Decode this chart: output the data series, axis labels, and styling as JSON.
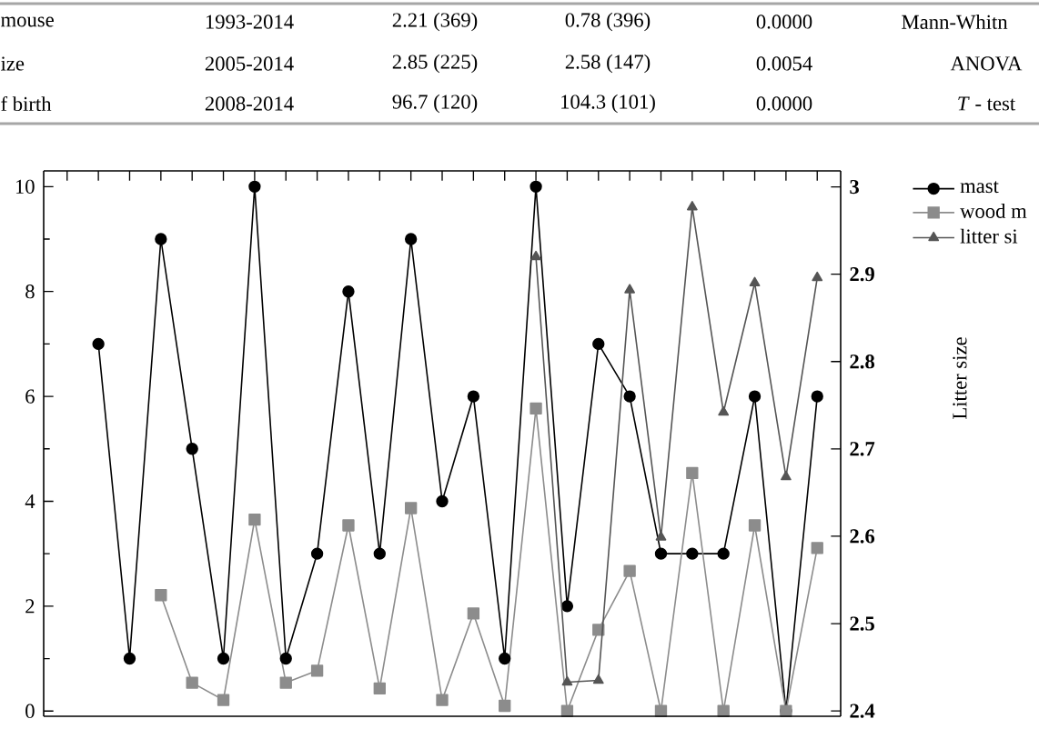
{
  "chart_data": {
    "type": "line",
    "categories": [
      null,
      null,
      null,
      null,
      null,
      null,
      null,
      null,
      null,
      null,
      null,
      null,
      null,
      null,
      null,
      null,
      null,
      null,
      null,
      null,
      null,
      null,
      null,
      null
    ],
    "series": [
      {
        "name": "mast",
        "color": "#000000",
        "marker": "circle",
        "values": [
          7,
          1,
          9,
          5,
          1,
          10,
          1,
          3,
          8,
          3,
          9,
          4,
          6,
          1,
          10,
          2,
          7,
          6,
          3,
          3,
          3,
          6,
          0,
          6
        ]
      },
      {
        "name": "wood m",
        "color": "#8c8c8c",
        "marker": "square",
        "values": [
          null,
          null,
          2.21,
          0.54,
          0.21,
          3.65,
          0.54,
          0.77,
          3.54,
          0.43,
          3.87,
          0.21,
          1.86,
          0.1,
          5.77,
          0,
          1.55,
          2.67,
          0,
          4.54,
          0,
          3.54,
          0,
          3.11
        ]
      },
      {
        "name": "litter si",
        "color": "#555555",
        "marker": "triangle",
        "axis": "y2",
        "values": [
          null,
          null,
          null,
          null,
          null,
          null,
          null,
          null,
          null,
          null,
          null,
          null,
          null,
          null,
          2.92,
          2.433,
          2.435,
          2.882,
          2.599,
          2.977,
          2.742,
          2.89,
          2.668,
          2.896
        ]
      }
    ],
    "ylim": [
      -0.1,
      10.3
    ],
    "yticks": [
      0,
      2,
      4,
      6,
      8,
      10
    ],
    "y2lim": [
      2.3939,
      3.0183
    ],
    "y2ticks": [
      2.4,
      2.5,
      2.6,
      2.7,
      2.8,
      2.9,
      3
    ],
    "y2label": "Litter size",
    "legend": "top right",
    "line_style": "solid",
    "annotations": [
      "mouse",
      "1993-2014",
      "2.21 (369)",
      "0.78 (396)",
      "0.0000",
      "Mann-Whitn",
      "ize",
      "2005-2014",
      "2.85 (225)",
      "2.58 (147)",
      "0.0054",
      "ANOVA",
      "f birth",
      "2008-2014",
      "96.7 (120)",
      "104.3 (101)",
      "0.0000",
      "*T* - test"
    ]
  }
}
